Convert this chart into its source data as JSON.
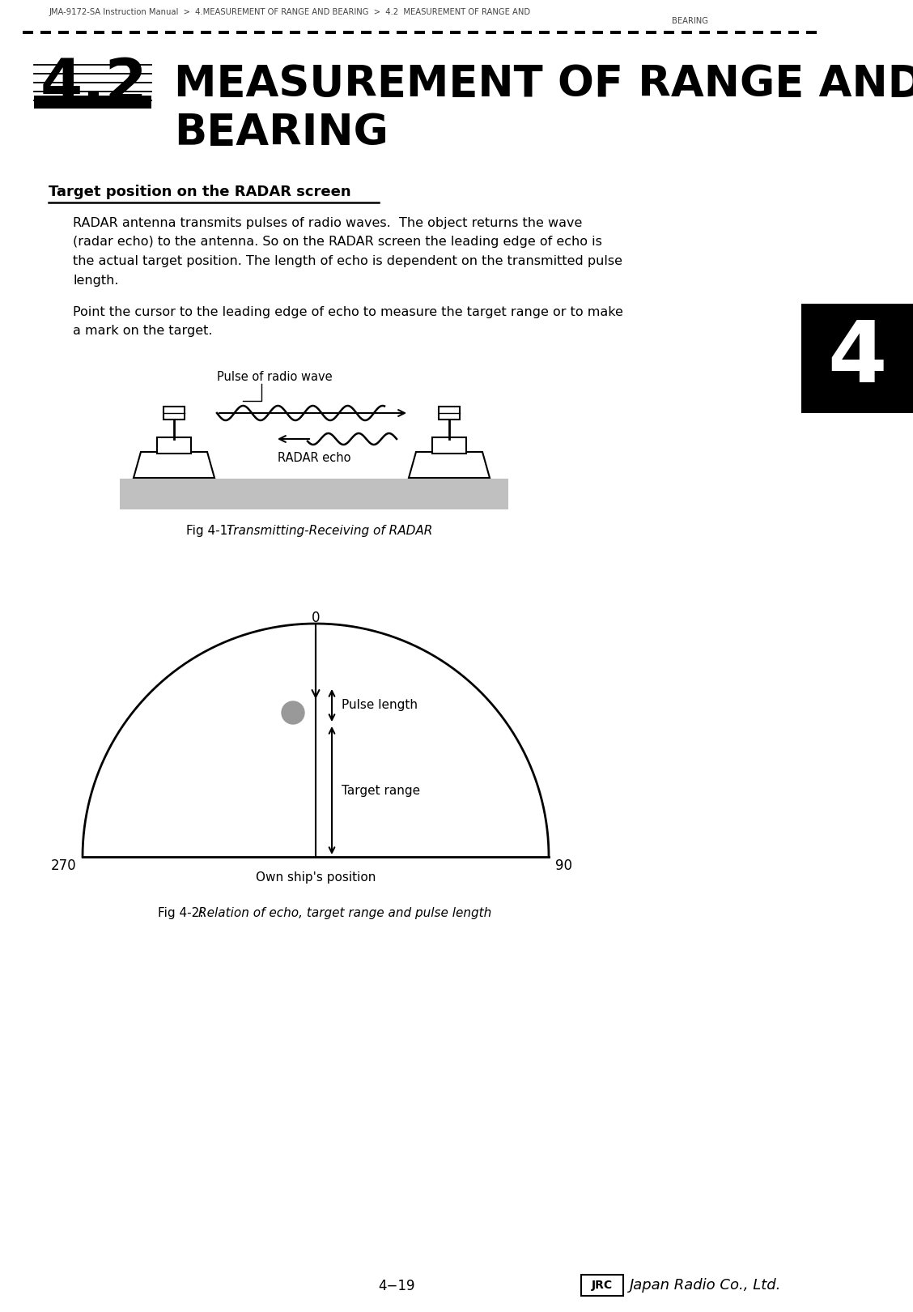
{
  "breadcrumb_line1": "JMA-9172-SA Instruction Manual  >  4.MEASUREMENT OF RANGE AND BEARING  >  4.2  MEASUREMENT OF RANGE AND",
  "breadcrumb_line2": "BEARING",
  "section_number": "4.2",
  "title_line1": "MEASUREMENT OF RANGE AND",
  "title_line2": "BEARING",
  "section_heading": "Target position on the RADAR screen",
  "body_para1": [
    "RADAR antenna transmits pulses of radio waves.  The object returns the wave",
    "(radar echo) to the antenna. So on the RADAR screen the leading edge of echo is",
    "the actual target position. The length of echo is dependent on the transmitted pulse",
    "length."
  ],
  "body_para2": [
    "Point the cursor to the leading edge of echo to measure the target range or to make",
    "a mark on the target."
  ],
  "label_pulse_radio": "Pulse of radio wave",
  "label_radar_echo": "RADAR echo",
  "fig1_prefix": "Fig 4-1: ",
  "fig1_italic": "Transmitting-Receiving of RADAR",
  "label_0": "0",
  "label_270": "270",
  "label_90": "90",
  "label_pulse_length": "Pulse length",
  "label_target_range": "Target range",
  "label_own_ship": "Own ship's position",
  "fig2_prefix": "Fig 4-2: ",
  "fig2_italic": "Relation of echo, target range and pulse length",
  "page_num": "4−19",
  "chapter_tab": "4",
  "bg": "#ffffff",
  "black": "#000000",
  "gray_bar": "#c0c0c0",
  "dot_color": "#999999"
}
